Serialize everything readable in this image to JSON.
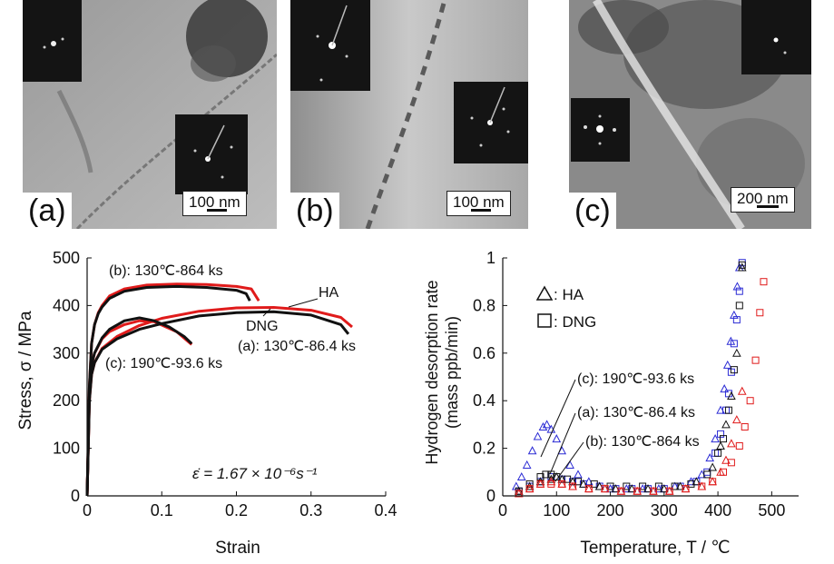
{
  "micrographs": [
    {
      "label": "(a)",
      "scale": "100 nm"
    },
    {
      "label": "(b)",
      "scale": "100 nm"
    },
    {
      "label": "(c)",
      "scale": "200 nm"
    }
  ],
  "chart_data": [
    {
      "type": "line",
      "xlabel": "Strain",
      "ylabel": "Stress, σ / MPa",
      "xlim": [
        0,
        0.4
      ],
      "ylim": [
        0,
        500
      ],
      "xticks": [
        "0",
        "0.1",
        "0.2",
        "0.3",
        "0.4"
      ],
      "yticks": [
        "0",
        "100",
        "200",
        "300",
        "400",
        "500"
      ],
      "grid": false,
      "formula": "ε̇ = 1.67 × 10⁻⁶s⁻¹",
      "annotations": [
        "(b): 130℃-864 ks",
        "HA",
        "DNG",
        "(a): 130℃-86.4 ks",
        "(c): 190℃-93.6 ks"
      ],
      "series": [
        {
          "name": "HA",
          "color": "#e01b1b",
          "curves": [
            {
              "x": [
                0,
                0.003,
                0.006,
                0.01,
                0.015,
                0.02,
                0.03,
                0.05,
                0.08,
                0.12,
                0.16,
                0.2,
                0.22,
                0.23
              ],
              "y": [
                0,
                230,
                320,
                360,
                385,
                400,
                420,
                435,
                443,
                445,
                444,
                440,
                435,
                410
              ]
            },
            {
              "x": [
                0,
                0.003,
                0.006,
                0.01,
                0.02,
                0.03,
                0.05,
                0.07,
                0.09,
                0.12,
                0.14
              ],
              "y": [
                0,
                210,
                275,
                300,
                330,
                345,
                360,
                368,
                366,
                345,
                318
              ]
            },
            {
              "x": [
                0,
                0.003,
                0.006,
                0.01,
                0.02,
                0.04,
                0.07,
                0.1,
                0.15,
                0.2,
                0.25,
                0.3,
                0.34,
                0.355
              ],
              "y": [
                0,
                200,
                255,
                280,
                310,
                335,
                358,
                373,
                388,
                395,
                396,
                390,
                375,
                355
              ]
            }
          ]
        },
        {
          "name": "DNG",
          "color": "#111111",
          "curves": [
            {
              "x": [
                0,
                0.003,
                0.006,
                0.01,
                0.015,
                0.02,
                0.03,
                0.05,
                0.08,
                0.12,
                0.16,
                0.2,
                0.213,
                0.218
              ],
              "y": [
                0,
                230,
                320,
                360,
                383,
                397,
                415,
                430,
                438,
                440,
                438,
                432,
                425,
                410
              ]
            },
            {
              "x": [
                0,
                0.003,
                0.006,
                0.01,
                0.02,
                0.03,
                0.05,
                0.07,
                0.09,
                0.11,
                0.13,
                0.14
              ],
              "y": [
                0,
                210,
                275,
                300,
                332,
                350,
                368,
                374,
                368,
                355,
                335,
                320
              ]
            },
            {
              "x": [
                0,
                0.003,
                0.006,
                0.01,
                0.02,
                0.04,
                0.07,
                0.1,
                0.15,
                0.2,
                0.25,
                0.3,
                0.34,
                0.35
              ],
              "y": [
                0,
                200,
                255,
                280,
                308,
                330,
                350,
                362,
                378,
                385,
                387,
                380,
                360,
                340
              ]
            }
          ]
        }
      ]
    },
    {
      "type": "scatter",
      "xlabel": "Temperature, T / ℃",
      "ylabel": "Hydrogen desorption rate (mass ppb/min)",
      "xlim": [
        0,
        550
      ],
      "ylim": [
        0,
        1
      ],
      "xticks": [
        "0",
        "100",
        "200",
        "300",
        "400",
        "500"
      ],
      "yticks": [
        "0",
        "0.2",
        "0.4",
        "0.6",
        "0.8",
        "1"
      ],
      "grid": false,
      "legend": [
        {
          "marker": "triangle",
          "label": "HA"
        },
        {
          "marker": "square",
          "label": "DNG"
        }
      ],
      "legend_labels": [
        ": HA",
        ": DNG"
      ],
      "annotations": [
        "(c): 190℃-93.6 ks",
        "(a): 130℃-86.4 ks",
        "(b): 130℃-864 ks"
      ],
      "series": [
        {
          "name": "(c) HA",
          "marker": "triangle",
          "color": "#2a2ad4",
          "x": [
            25,
            35,
            45,
            55,
            65,
            75,
            82,
            90,
            100,
            110,
            125,
            140,
            160,
            180,
            200,
            230,
            260,
            290,
            320,
            350,
            370,
            385,
            395,
            405,
            412,
            418,
            424,
            430,
            436,
            440
          ],
          "y": [
            0.04,
            0.08,
            0.13,
            0.19,
            0.25,
            0.29,
            0.3,
            0.28,
            0.24,
            0.19,
            0.13,
            0.09,
            0.06,
            0.04,
            0.03,
            0.03,
            0.03,
            0.03,
            0.04,
            0.06,
            0.09,
            0.16,
            0.24,
            0.36,
            0.45,
            0.55,
            0.65,
            0.76,
            0.88,
            0.96
          ]
        },
        {
          "name": "(c) DNG",
          "marker": "square",
          "color": "#2a2ad4",
          "x": [
            30,
            50,
            70,
            90,
            110,
            130,
            150,
            180,
            210,
            240,
            270,
            300,
            330,
            360,
            380,
            395,
            405,
            415,
            420,
            425,
            430,
            435,
            440,
            445
          ],
          "y": [
            0.02,
            0.04,
            0.06,
            0.08,
            0.07,
            0.06,
            0.05,
            0.04,
            0.03,
            0.03,
            0.03,
            0.03,
            0.04,
            0.06,
            0.1,
            0.18,
            0.26,
            0.36,
            0.43,
            0.52,
            0.64,
            0.74,
            0.86,
            0.98
          ]
        },
        {
          "name": "(a) HA",
          "marker": "triangle",
          "color": "#111111",
          "x": [
            30,
            50,
            70,
            90,
            100,
            110,
            130,
            150,
            180,
            210,
            240,
            270,
            300,
            330,
            360,
            390,
            405,
            415,
            425,
            435,
            445
          ],
          "y": [
            0.02,
            0.04,
            0.06,
            0.07,
            0.08,
            0.07,
            0.06,
            0.05,
            0.04,
            0.03,
            0.03,
            0.03,
            0.03,
            0.04,
            0.06,
            0.12,
            0.21,
            0.3,
            0.42,
            0.6,
            0.96
          ]
        },
        {
          "name": "(a) DNG",
          "marker": "square",
          "color": "#111111",
          "x": [
            30,
            50,
            70,
            80,
            90,
            100,
            120,
            140,
            170,
            200,
            230,
            260,
            290,
            320,
            350,
            380,
            400,
            410,
            420,
            430,
            440,
            445
          ],
          "y": [
            0.02,
            0.05,
            0.08,
            0.09,
            0.09,
            0.08,
            0.07,
            0.06,
            0.05,
            0.04,
            0.04,
            0.04,
            0.04,
            0.04,
            0.05,
            0.09,
            0.18,
            0.24,
            0.36,
            0.53,
            0.8,
            0.97
          ]
        },
        {
          "name": "(b) HA",
          "marker": "triangle",
          "color": "#e01b1b",
          "x": [
            30,
            50,
            70,
            90,
            110,
            130,
            160,
            190,
            220,
            250,
            280,
            310,
            340,
            370,
            390,
            405,
            415,
            425,
            435,
            445
          ],
          "y": [
            0.01,
            0.03,
            0.05,
            0.06,
            0.05,
            0.04,
            0.03,
            0.03,
            0.02,
            0.02,
            0.02,
            0.02,
            0.03,
            0.04,
            0.06,
            0.1,
            0.15,
            0.22,
            0.32,
            0.44
          ]
        },
        {
          "name": "(b) DNG",
          "marker": "square",
          "color": "#e01b1b",
          "x": [
            30,
            50,
            70,
            90,
            110,
            130,
            160,
            190,
            220,
            250,
            280,
            310,
            340,
            370,
            390,
            410,
            425,
            440,
            450,
            460,
            470,
            478,
            485
          ],
          "y": [
            0.01,
            0.03,
            0.05,
            0.05,
            0.05,
            0.04,
            0.03,
            0.03,
            0.02,
            0.02,
            0.02,
            0.02,
            0.03,
            0.04,
            0.06,
            0.1,
            0.14,
            0.21,
            0.29,
            0.4,
            0.57,
            0.77,
            0.9
          ]
        }
      ]
    }
  ]
}
